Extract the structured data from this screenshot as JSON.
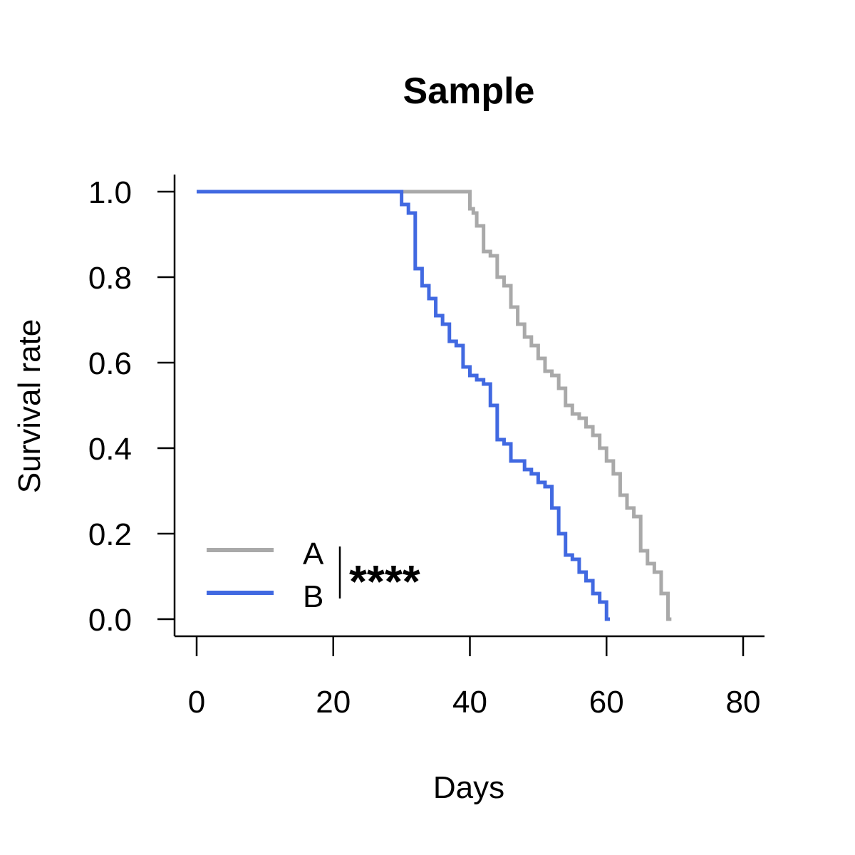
{
  "chart_data": {
    "type": "line",
    "title": "Sample",
    "xlabel": "Days",
    "ylabel": "Survival rate",
    "xlim": [
      0,
      80
    ],
    "ylim": [
      0,
      1
    ],
    "xticks": [
      "0",
      "20",
      "40",
      "60",
      "80"
    ],
    "yticks": [
      "0.0",
      "0.2",
      "0.4",
      "0.6",
      "0.8",
      "1.0"
    ],
    "grid": false,
    "legend_position": "bottom-left",
    "significance_label": "****",
    "series": [
      {
        "name": "A",
        "color": "#A9A9A9",
        "x": [
          0,
          40,
          40.5,
          41,
          41.5,
          42,
          42.5,
          43,
          44,
          44.5,
          45,
          46,
          46.5,
          47,
          48,
          49,
          49.5,
          50,
          51,
          51.5,
          52,
          53,
          54,
          55,
          56,
          57,
          58,
          58.5,
          59,
          60,
          61,
          62,
          63,
          63.5,
          64,
          65,
          66,
          67,
          68,
          69,
          69.5
        ],
        "y": [
          1.0,
          0.96,
          0.95,
          0.92,
          0.92,
          0.86,
          0.86,
          0.85,
          0.8,
          0.8,
          0.78,
          0.73,
          0.73,
          0.69,
          0.66,
          0.64,
          0.64,
          0.61,
          0.58,
          0.58,
          0.57,
          0.54,
          0.5,
          0.48,
          0.47,
          0.45,
          0.43,
          0.43,
          0.4,
          0.37,
          0.34,
          0.29,
          0.26,
          0.26,
          0.24,
          0.16,
          0.13,
          0.11,
          0.06,
          0.0,
          0.0
        ]
      },
      {
        "name": "B",
        "color": "#4169E1",
        "x": [
          0,
          30,
          31,
          32,
          33,
          34,
          35,
          36,
          37,
          38,
          39,
          40,
          41,
          42,
          43,
          44,
          45,
          46,
          47,
          48,
          49,
          50,
          51,
          52,
          53,
          54,
          55,
          56,
          57,
          58,
          59,
          60,
          60.5
        ],
        "y": [
          1.0,
          0.97,
          0.95,
          0.82,
          0.78,
          0.75,
          0.71,
          0.69,
          0.65,
          0.64,
          0.59,
          0.57,
          0.56,
          0.55,
          0.5,
          0.42,
          0.41,
          0.37,
          0.37,
          0.35,
          0.34,
          0.32,
          0.31,
          0.26,
          0.2,
          0.15,
          0.14,
          0.11,
          0.09,
          0.06,
          0.04,
          0.0,
          0.0
        ]
      }
    ]
  }
}
